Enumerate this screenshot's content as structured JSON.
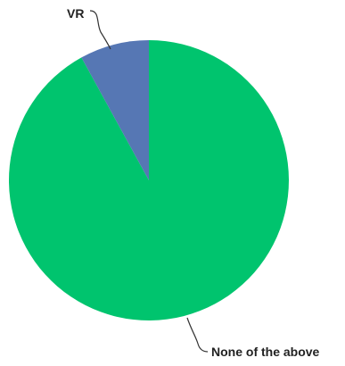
{
  "chart_data": {
    "type": "pie",
    "slices": [
      {
        "label": "None of the above",
        "value": 92,
        "color": "#00C46E"
      },
      {
        "label": "VR",
        "value": 8,
        "color": "#5677B4"
      }
    ]
  }
}
